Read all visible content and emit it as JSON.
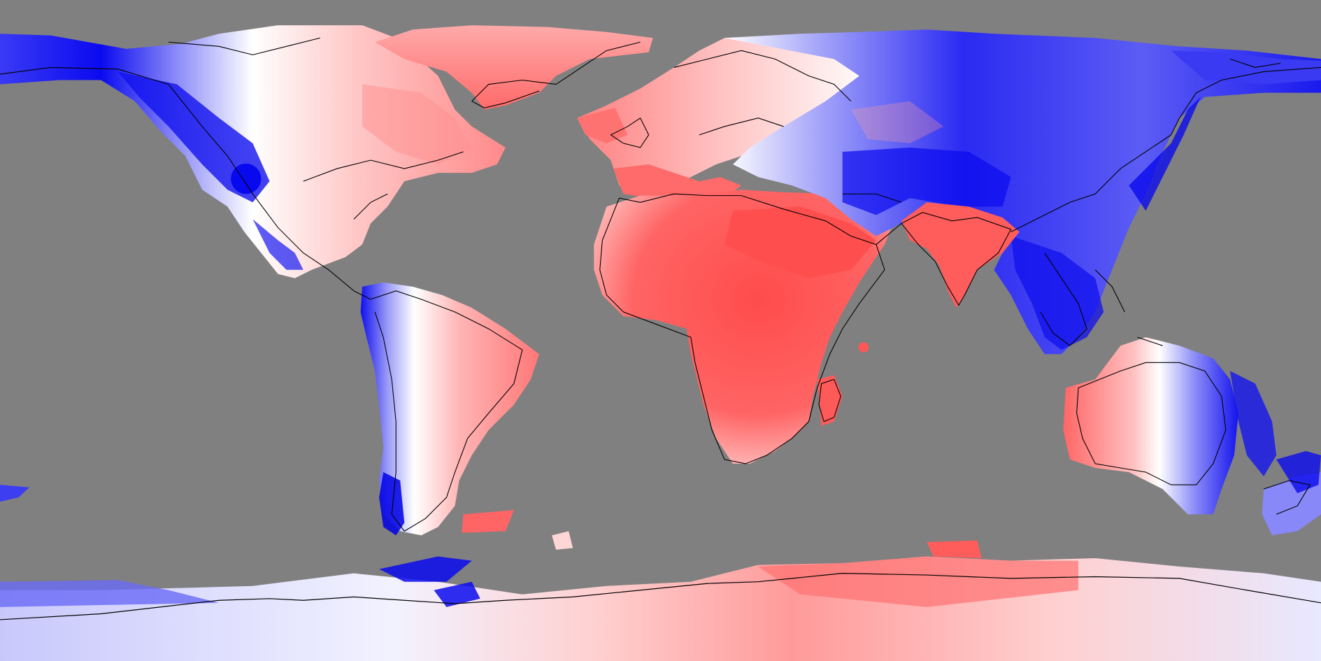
{
  "map": {
    "projection": "equirectangular",
    "ocean_color": "#808080",
    "coastline_color": "#000000",
    "palette": {
      "negative_strong": "#0000ee",
      "negative_mid": "#7f7ff8",
      "negative_light": "#c8c8fc",
      "neutral": "#ffffff",
      "positive_light": "#ffd0d0",
      "positive_mid": "#ff9a9a",
      "positive_strong": "#ff5555"
    }
  }
}
